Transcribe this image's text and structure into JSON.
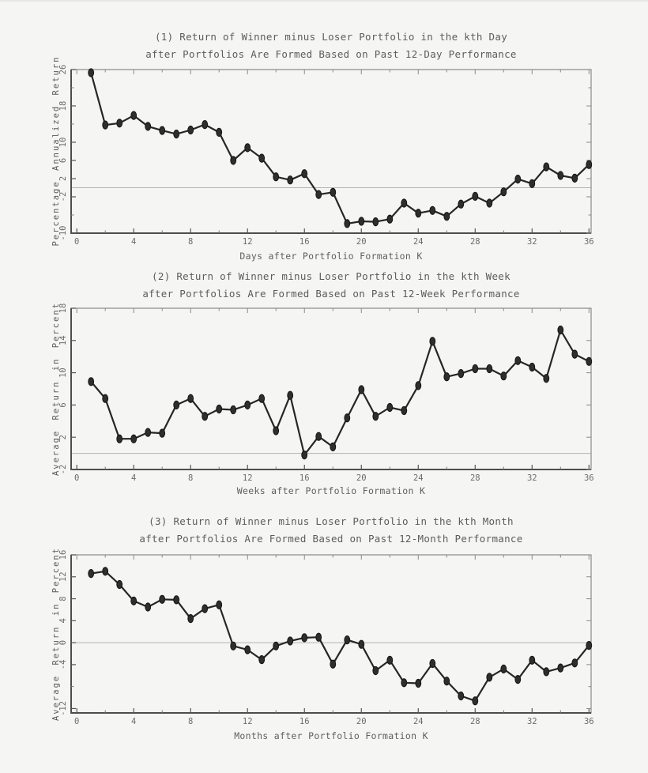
{
  "page": {
    "description": "Three stacked SAS-style line charts of winner-minus-loser portfolio returns after formation, at daily, weekly and monthly horizons"
  },
  "colors": {
    "background": "#f5f5f4",
    "series_line": "#262626",
    "marker_fill": "#2e2e2e",
    "marker_edge": "#151515",
    "frame": "#8a8a8a",
    "axis": "#4d4d4d",
    "tick": "#555555",
    "minor_tick": "#7a7a7a",
    "reference_line": "#b3b3b3",
    "text": "#5c5c5c"
  },
  "chart_data": [
    {
      "type": "line",
      "title_line1": "(1) Return of Winner minus Loser Portfolio in the kth Day",
      "title_line2": "after Portfolios Are Formed Based on Past 12-Day Performance",
      "xlabel": "Days after Portfolio Formation K",
      "ylabel": "Percentage Annualized Return",
      "legend_position": "none",
      "grid": false,
      "x": [
        1,
        2,
        3,
        4,
        5,
        6,
        7,
        8,
        9,
        10,
        11,
        12,
        13,
        14,
        15,
        16,
        17,
        18,
        19,
        20,
        21,
        22,
        23,
        24,
        25,
        26,
        27,
        28,
        29,
        30,
        31,
        32,
        33,
        34,
        35,
        36
      ],
      "values": [
        25.3,
        13.8,
        14.2,
        15.9,
        13.5,
        12.6,
        11.8,
        12.7,
        13.9,
        12.2,
        6.0,
        8.8,
        6.5,
        2.4,
        1.7,
        3.1,
        -1.5,
        -1.0,
        -7.9,
        -7.4,
        -7.5,
        -6.9,
        -3.4,
        -5.6,
        -5.0,
        -6.3,
        -3.6,
        -1.9,
        -3.4,
        -0.9,
        1.9,
        0.9,
        4.6,
        2.7,
        2.1,
        5.1
      ],
      "xticks": [
        0,
        4,
        8,
        12,
        16,
        20,
        24,
        28,
        32,
        36
      ],
      "x_minor_step": 2,
      "yticks": [
        26,
        18,
        10,
        6,
        2,
        -2,
        -10
      ],
      "y_minor_ticks": [
        22,
        14,
        -6
      ],
      "xlim": [
        -0.4,
        36.15
      ],
      "ylim": [
        -10,
        26
      ],
      "refline": 0
    },
    {
      "type": "line",
      "title_line1": "(2) Return of Winner minus Loser Portfolio in the kth Week",
      "title_line2": "after Portfolios Are Formed Based on Past 12-Week Performance",
      "xlabel": "Weeks after Portfolio Formation K",
      "ylabel": "Average Return in Percent",
      "legend_position": "none",
      "grid": false,
      "x": [
        1,
        2,
        3,
        4,
        5,
        6,
        7,
        8,
        9,
        10,
        11,
        12,
        13,
        14,
        15,
        16,
        17,
        18,
        19,
        20,
        21,
        22,
        23,
        24,
        25,
        26,
        27,
        28,
        29,
        30,
        31,
        32,
        33,
        34,
        35,
        36
      ],
      "values": [
        8.9,
        6.8,
        1.8,
        1.8,
        2.6,
        2.5,
        6.0,
        6.8,
        4.6,
        5.5,
        5.4,
        6.0,
        6.8,
        2.8,
        7.2,
        -0.2,
        2.1,
        0.8,
        4.4,
        7.9,
        4.6,
        5.7,
        5.3,
        8.4,
        13.9,
        9.5,
        9.9,
        10.5,
        10.5,
        9.6,
        11.5,
        10.7,
        9.3,
        15.3,
        12.3,
        11.4
      ],
      "xticks": [
        0,
        4,
        8,
        12,
        16,
        20,
        24,
        28,
        32,
        36
      ],
      "x_minor_step": 2,
      "yticks": [
        18,
        14,
        10,
        6,
        2,
        -2
      ],
      "y_minor_ticks": [],
      "xlim": [
        -0.4,
        36.15
      ],
      "ylim": [
        -2,
        18
      ],
      "refline": 0
    },
    {
      "type": "line",
      "title_line1": "(3) Return of Winner minus Loser Portfolio in the kth Month",
      "title_line2": "after Portfolios Are Formed Based on Past 12-Month Performance",
      "xlabel": "Months after Portfolio Formation K",
      "ylabel": "Average Return in Percent",
      "legend_position": "none",
      "grid": false,
      "x": [
        1,
        2,
        3,
        4,
        5,
        6,
        7,
        8,
        9,
        10,
        11,
        12,
        13,
        14,
        15,
        16,
        17,
        18,
        19,
        20,
        21,
        22,
        23,
        24,
        25,
        26,
        27,
        28,
        29,
        30,
        31,
        32,
        33,
        34,
        35,
        36
      ],
      "values": [
        12.6,
        13.0,
        10.6,
        7.6,
        6.5,
        7.9,
        7.8,
        4.4,
        6.2,
        6.9,
        -0.6,
        -1.3,
        -3.1,
        -0.6,
        0.3,
        0.9,
        1.0,
        -3.9,
        0.5,
        -0.3,
        -5.1,
        -3.2,
        -7.3,
        -7.4,
        -3.8,
        -7.0,
        -9.7,
        -10.6,
        -6.3,
        -4.8,
        -6.7,
        -3.2,
        -5.3,
        -4.6,
        -3.7,
        -0.5
      ],
      "xticks": [
        0,
        4,
        8,
        12,
        16,
        20,
        24,
        28,
        32,
        36
      ],
      "x_minor_step": 2,
      "yticks": [
        16,
        12,
        8,
        4,
        0,
        -4,
        -12
      ],
      "y_minor_ticks": [
        -8
      ],
      "xlim": [
        -0.4,
        36.15
      ],
      "ylim": [
        -12.8,
        16
      ],
      "refline": 0
    }
  ]
}
